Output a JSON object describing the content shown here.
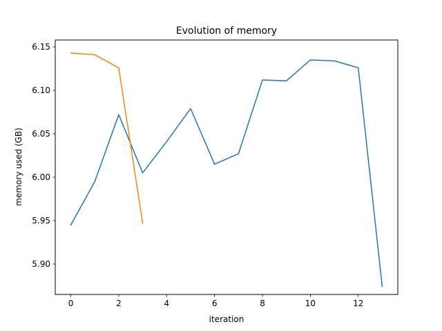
{
  "chart_data": {
    "type": "line",
    "title": "Evolution of memory",
    "xlabel": "iteration",
    "ylabel": "memory used (GB)",
    "xlim": [
      -0.65,
      13.65
    ],
    "ylim": [
      5.865,
      6.158
    ],
    "xticks": [
      0,
      2,
      4,
      6,
      8,
      10,
      12
    ],
    "yticks": [
      5.9,
      5.95,
      6.0,
      6.05,
      6.1,
      6.15
    ],
    "ytick_labels": [
      "5.90",
      "5.95",
      "6.00",
      "6.05",
      "6.10",
      "6.15"
    ],
    "grid": false,
    "series": [
      {
        "color": "#1f77b4",
        "x": [
          0,
          1,
          2,
          3,
          4,
          5,
          6,
          7,
          8,
          9,
          10,
          11,
          12,
          13
        ],
        "values": [
          5.945,
          5.995,
          6.072,
          6.005,
          6.041,
          6.079,
          6.015,
          6.027,
          6.112,
          6.111,
          6.135,
          6.134,
          6.126,
          5.874
        ]
      },
      {
        "color": "#ff7f0e",
        "x": [
          0,
          1,
          2,
          3
        ],
        "values": [
          6.143,
          6.141,
          6.126,
          5.947
        ]
      }
    ]
  }
}
